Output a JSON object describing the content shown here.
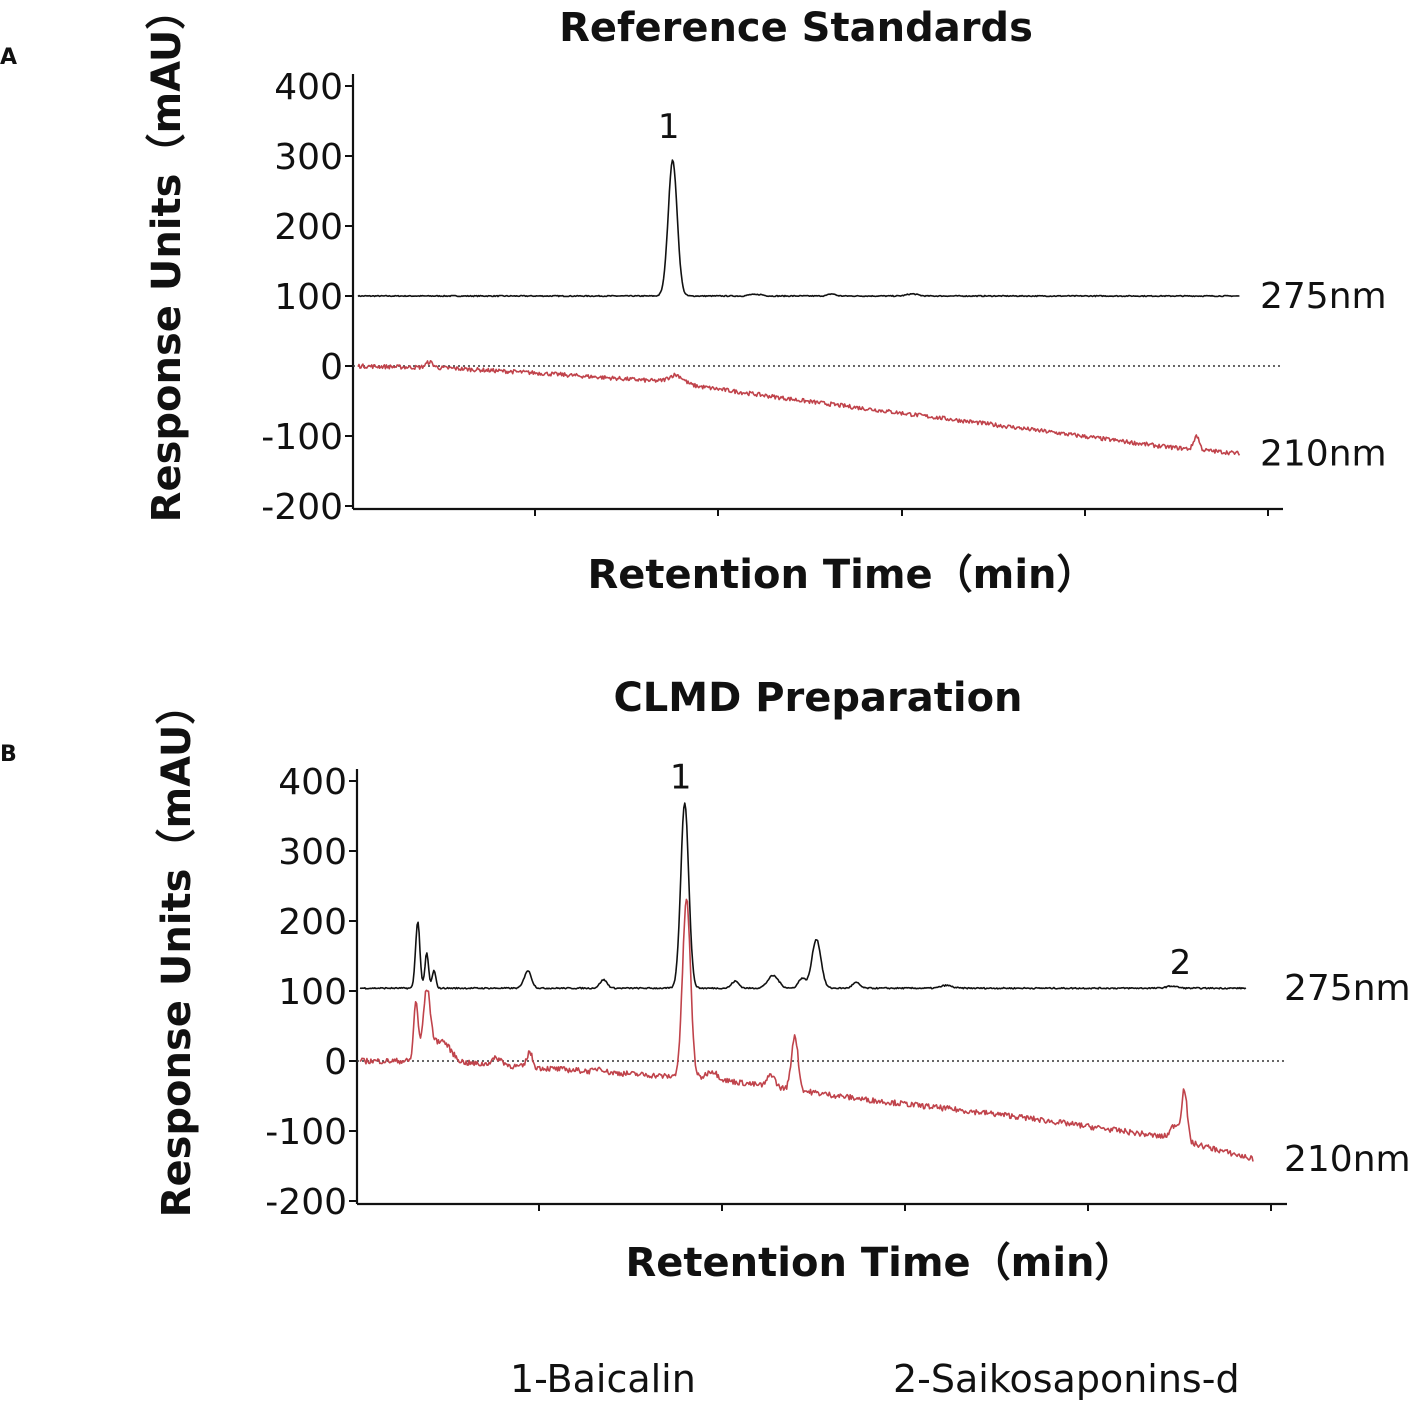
{
  "chart_data": [
    {
      "panel": "A",
      "type": "line",
      "title": "Reference Standards",
      "xlabel": "Retention Time（min）",
      "ylabel": "Response Units（mAU）",
      "ylim": [
        -200,
        400
      ],
      "yticks": [
        "400",
        "300",
        "200",
        "100",
        "0",
        "-100",
        "-200"
      ],
      "xlim": [
        0,
        50
      ],
      "reference_line": 0,
      "series": [
        {
          "name": "275nm",
          "label": "275nm",
          "color": "#111111",
          "baseline": 100,
          "peaks": [
            [
              17.6,
              194,
              0.25
            ],
            [
              22,
              2,
              0.2
            ],
            [
              22.5,
              2,
              0.2
            ],
            [
              26.5,
              3,
              0.2
            ],
            [
              31,
              3,
              0.3
            ]
          ],
          "x_end": 49.3
        },
        {
          "name": "210nm",
          "label": "210nm",
          "color": "#c0434b",
          "trend": [
            [
              0,
              0
            ],
            [
              5,
              -3
            ],
            [
              10,
              -10
            ],
            [
              17,
              -22
            ],
            [
              25,
              -50
            ],
            [
              35,
              -82
            ],
            [
              45,
              -115
            ],
            [
              49.3,
              -125
            ]
          ],
          "peaks": [
            [
              4,
              8,
              0.2
            ],
            [
              17.8,
              12,
              0.4
            ],
            [
              46.9,
              20,
              0.15
            ]
          ],
          "x_end": 49.3
        }
      ],
      "peak_annotations": [
        {
          "label": "1",
          "x": 17.6
        }
      ]
    },
    {
      "panel": "B",
      "type": "line",
      "title": "CLMD Preparation",
      "xlabel": "Retention Time（min）",
      "ylabel": "Response Units（mAU）",
      "ylim": [
        -200,
        400
      ],
      "yticks": [
        "400",
        "300",
        "200",
        "100",
        "0",
        "-100",
        "-200"
      ],
      "xlim": [
        0,
        50
      ],
      "reference_line": 0,
      "series": [
        {
          "name": "275nm",
          "label": "275nm",
          "color": "#111111",
          "baseline": 104,
          "peaks": [
            [
              3.2,
              95,
              0.12
            ],
            [
              3.7,
              50,
              0.1
            ],
            [
              4.1,
              25,
              0.1
            ],
            [
              9.3,
              25,
              0.2
            ],
            [
              13.5,
              12,
              0.2
            ],
            [
              18,
              265,
              0.22
            ],
            [
              20.8,
              10,
              0.2
            ],
            [
              22.9,
              18,
              0.3
            ],
            [
              24.5,
              14,
              0.2
            ],
            [
              25.3,
              70,
              0.25
            ],
            [
              27.5,
              8,
              0.2
            ],
            [
              32.5,
              4,
              0.3
            ],
            [
              45,
              3,
              0.3
            ]
          ],
          "x_end": 49.1
        },
        {
          "name": "210nm",
          "label": "210nm",
          "color": "#c0434b",
          "trend": [
            [
              0,
              0
            ],
            [
              4,
              0
            ],
            [
              7,
              -5
            ],
            [
              13,
              -15
            ],
            [
              20,
              -27
            ],
            [
              28,
              -55
            ],
            [
              36,
              -78
            ],
            [
              45,
              -110
            ],
            [
              49.5,
              -140
            ]
          ],
          "peaks": [
            [
              3.1,
              85,
              0.12
            ],
            [
              3.7,
              95,
              0.2
            ],
            [
              4.5,
              30,
              0.5
            ],
            [
              7.6,
              10,
              0.3
            ],
            [
              9.4,
              22,
              0.15
            ],
            [
              13.3,
              6,
              0.2
            ],
            [
              18.1,
              255,
              0.22
            ],
            [
              19.5,
              12,
              0.3
            ],
            [
              22.8,
              18,
              0.2
            ],
            [
              24.1,
              78,
              0.18
            ],
            [
              45.2,
              20,
              0.25
            ],
            [
              45.7,
              72,
              0.15
            ]
          ],
          "x_end": 49.5
        }
      ],
      "peak_annotations": [
        {
          "label": "1",
          "x": 18
        },
        {
          "label": "2",
          "x": 45.7
        }
      ]
    }
  ],
  "panels": [
    {
      "tag": "A"
    },
    {
      "tag": "B"
    }
  ],
  "legend": {
    "item1": "1-Baicalin",
    "item2": "2-Saikosaponins-d"
  }
}
